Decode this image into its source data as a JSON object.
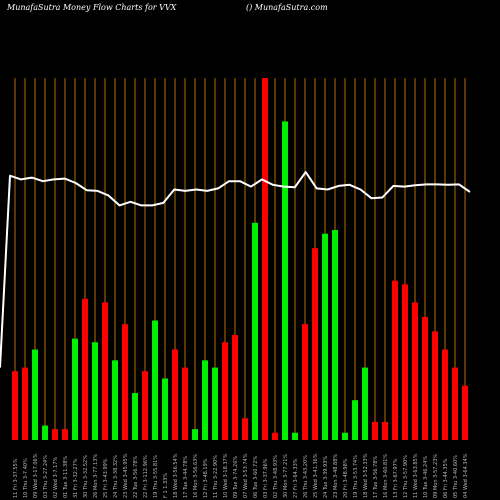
{
  "header": {
    "left": "MunafaSutra  Money Flow  Charts for VVX",
    "right": "() MunafaSutra.com"
  },
  "chart_data": {
    "type": "bar",
    "title": "MunafaSutra  Money Flow  Charts for VVX",
    "xlabel": "",
    "ylabel": "",
    "grid": true,
    "colors": {
      "up": "#00ee00",
      "down": "#ff0000",
      "grid": "#b36b00",
      "line": "#ffffff",
      "background": "#000000"
    },
    "categories": [
      "11 Fri 3-37.55%",
      "10 Thu 3-7.40%",
      "09 Wed 3-17.06%",
      "03 Thu 3-27.24%",
      "02 Wed 3-7.17%",
      "01 Tue 3-11.38%",
      "31 Fri 3-32.27%",
      "30 Thu 3-32.52%",
      "26 Mon 3-77.13%",
      "25 Fri 3-43.99%",
      "24 Thu 3-38.32%",
      "23 Wed 3-45.95%",
      "22 Tue 3-56.78%",
      "22 Fri 3-112.96%",
      "19 Thu 3-55.81%",
      "F 1 1.33%",
      "18 Wed 3-56.54%",
      "17 Tue 3-44.78%",
      "16 Mon 3-56.63%",
      "12 Fri 3-48.19%",
      "11 Thu 3-22.90%",
      "10 Wed 3-18.37%",
      "09 Tue 3-74.26%",
      "07 Wed 3-53.74%",
      "06 Tue 3-60.72%",
      "03 Fri 3-37.96%",
      "02 Thu 3-48.93%",
      "30 Mon 3-77.21%",
      "27 Fri 3-64.33%",
      "26 Thu 3-43.20%",
      "25 Wed 3-41.36%",
      "24 Tue 3-39.93%",
      "23 Mon 3-48.88%",
      "20 Fri 3-48.98%",
      "19 Thu 3-53.74%",
      "18 Wed 3-52.33%",
      "17 Tue 3-56.78%",
      "16 Mon 3-60.81%",
      "13 Fri 3-67.97%",
      "12 Thu 3-57.90%",
      "11 Wed 3-63.85%",
      "10 Tue 3-46.24%",
      "09 Mon 3-57.23%",
      "06 Fri 3-44.35%",
      "05 Thu 3-40.60%",
      "04 Wed 3-64.34%"
    ],
    "values": [
      19,
      20,
      25,
      4,
      3,
      3,
      28,
      39,
      27,
      38,
      22,
      32,
      13,
      19,
      33,
      17,
      25,
      20,
      3,
      22,
      20,
      27,
      29,
      6,
      60,
      100,
      2,
      88,
      2,
      32,
      53,
      57,
      58,
      2,
      11,
      20,
      5,
      5,
      44,
      43,
      38,
      34,
      30,
      25,
      20,
      15
    ],
    "directions": [
      "down",
      "down",
      "up",
      "up",
      "down",
      "down",
      "up",
      "down",
      "up",
      "down",
      "up",
      "down",
      "up",
      "down",
      "up",
      "up",
      "down",
      "down",
      "up",
      "up",
      "up",
      "down",
      "down",
      "down",
      "up",
      "down",
      "down",
      "up",
      "up",
      "down",
      "down",
      "up",
      "up",
      "up",
      "up",
      "up",
      "down",
      "down",
      "down",
      "down",
      "down",
      "down",
      "down",
      "down",
      "down",
      "down"
    ],
    "line_values": [
      73,
      72,
      72.5,
      71.5,
      72,
      72.2,
      71,
      69,
      68.8,
      67.5,
      64.8,
      65.8,
      64.8,
      64.8,
      65.5,
      69.2,
      68.8,
      69.2,
      68.8,
      69.5,
      71.5,
      71.5,
      70,
      72,
      70.5,
      70,
      69.8,
      74,
      69.5,
      69.2,
      70.2,
      70.5,
      69.2,
      66.8,
      67,
      70.2,
      70,
      70.4,
      70.6,
      70.6,
      70.5,
      70.6,
      68.5
    ],
    "line_start": [
      0,
      20
    ]
  }
}
